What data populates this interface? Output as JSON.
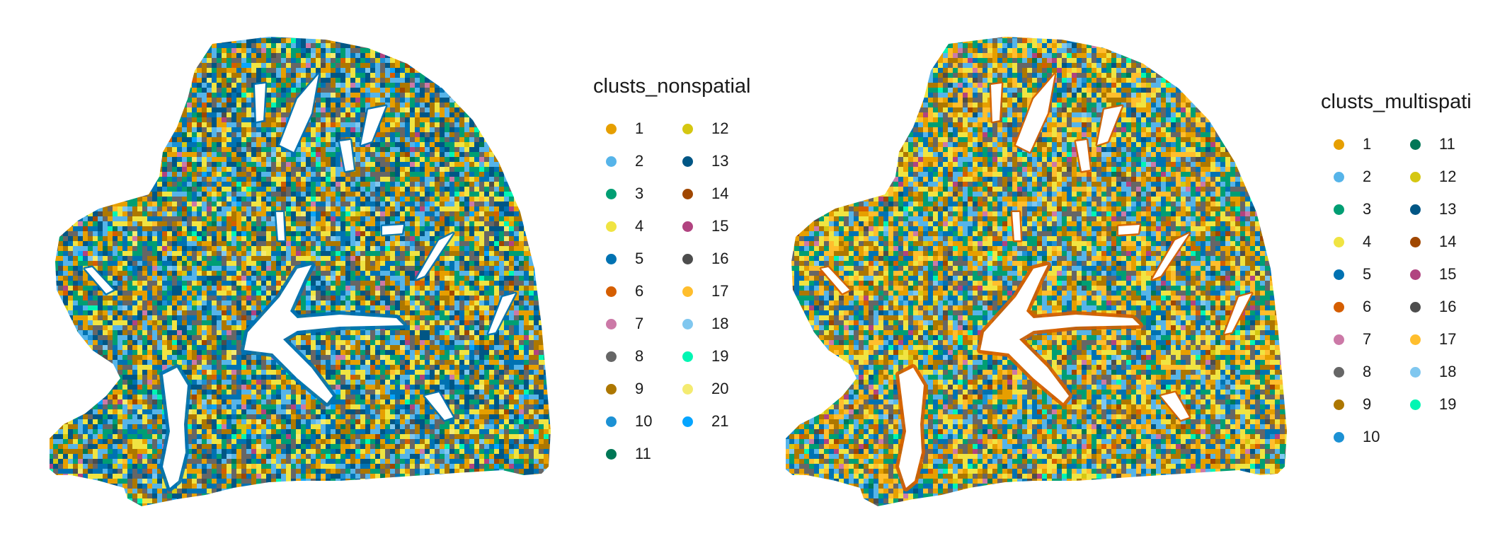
{
  "chart_data": [
    {
      "type": "scatter",
      "title": "",
      "xlabel": "",
      "ylabel": "",
      "grid": false,
      "legend_position": "right",
      "legend": {
        "title": "clusts_nonspatial",
        "entries": [
          {
            "label": "1",
            "color": "#E69F00"
          },
          {
            "label": "2",
            "color": "#56B4E9"
          },
          {
            "label": "3",
            "color": "#009E73"
          },
          {
            "label": "4",
            "color": "#F0E442"
          },
          {
            "label": "5",
            "color": "#0072B2"
          },
          {
            "label": "6",
            "color": "#D55E00"
          },
          {
            "label": "7",
            "color": "#CC79A7"
          },
          {
            "label": "8",
            "color": "#666666"
          },
          {
            "label": "9",
            "color": "#AD7700"
          },
          {
            "label": "10",
            "color": "#1C91D4"
          },
          {
            "label": "11",
            "color": "#007756"
          },
          {
            "label": "12",
            "color": "#D5C711"
          },
          {
            "label": "13",
            "color": "#005685"
          },
          {
            "label": "14",
            "color": "#A04700"
          },
          {
            "label": "15",
            "color": "#B14380"
          },
          {
            "label": "16",
            "color": "#4D4D4D"
          },
          {
            "label": "17",
            "color": "#FFBE2D"
          },
          {
            "label": "18",
            "color": "#80C7EF"
          },
          {
            "label": "19",
            "color": "#00F6B3"
          },
          {
            "label": "20",
            "color": "#F4EB71"
          },
          {
            "label": "21",
            "color": "#06A5FF"
          }
        ]
      },
      "dominant_colors": [
        "#009E73",
        "#E69F00",
        "#0072B2",
        "#F0E442",
        "#56B4E9",
        "#AD7700",
        "#005685",
        "#666666"
      ],
      "vessel_accent_color": "#0072B2"
    },
    {
      "type": "scatter",
      "title": "",
      "xlabel": "",
      "ylabel": "",
      "grid": false,
      "legend_position": "right",
      "legend": {
        "title": "clusts_multispati",
        "entries": [
          {
            "label": "1",
            "color": "#E69F00"
          },
          {
            "label": "2",
            "color": "#56B4E9"
          },
          {
            "label": "3",
            "color": "#009E73"
          },
          {
            "label": "4",
            "color": "#F0E442"
          },
          {
            "label": "5",
            "color": "#0072B2"
          },
          {
            "label": "6",
            "color": "#D55E00"
          },
          {
            "label": "7",
            "color": "#CC79A7"
          },
          {
            "label": "8",
            "color": "#666666"
          },
          {
            "label": "9",
            "color": "#AD7700"
          },
          {
            "label": "10",
            "color": "#1C91D4"
          },
          {
            "label": "11",
            "color": "#007756"
          },
          {
            "label": "12",
            "color": "#D5C711"
          },
          {
            "label": "13",
            "color": "#005685"
          },
          {
            "label": "14",
            "color": "#A04700"
          },
          {
            "label": "15",
            "color": "#B14380"
          },
          {
            "label": "16",
            "color": "#4D4D4D"
          },
          {
            "label": "17",
            "color": "#FFBE2D"
          },
          {
            "label": "18",
            "color": "#80C7EF"
          },
          {
            "label": "19",
            "color": "#00F6B3"
          }
        ]
      },
      "dominant_colors": [
        "#E69F00",
        "#FFBE2D",
        "#56B4E9",
        "#0072B2",
        "#666666",
        "#AD7700",
        "#009E73",
        "#F0E442"
      ],
      "vessel_accent_color": "#D55E00"
    }
  ]
}
